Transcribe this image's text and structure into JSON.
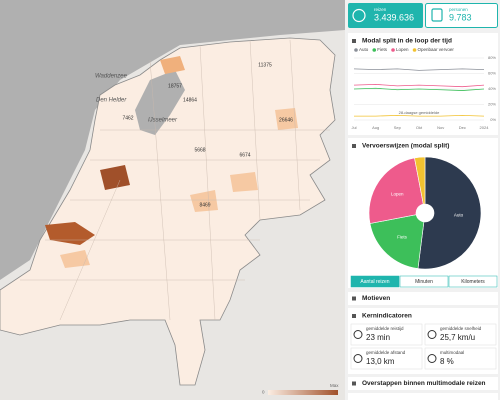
{
  "cards": [
    {
      "label": "reizen",
      "value": "3.439.636"
    },
    {
      "label": "personen",
      "value": "9.783"
    }
  ],
  "map": {
    "places": [
      "Waddenzee",
      "Den Helder",
      "IJsselmeer"
    ],
    "region_values": [
      "18757",
      "11375",
      "7462",
      "5668",
      "6674",
      "26646",
      "14864",
      "8469"
    ],
    "legend": {
      "min": "0",
      "max": "Max"
    }
  },
  "modal_time": {
    "type": "line",
    "title": "Modal split in de loop der tijd",
    "x": [
      "Jul",
      "Aug",
      "Sep",
      "Okt",
      "Nov",
      "Dec",
      "2024"
    ],
    "series": [
      {
        "name": "Auto",
        "color": "#8a8f98",
        "values": [
          66,
          65,
          66,
          64,
          65,
          66,
          65
        ]
      },
      {
        "name": "Fiets",
        "color": "#3dbf5a",
        "values": [
          40,
          41,
          39,
          40,
          39,
          38,
          40
        ]
      },
      {
        "name": "Lopen",
        "color": "#ee5b8c",
        "values": [
          45,
          46,
          44,
          45,
          44,
          43,
          45
        ]
      },
      {
        "name": "Openbaar vervoer",
        "color": "#f2c230",
        "values": [
          5,
          5,
          6,
          5,
          5,
          6,
          5
        ]
      }
    ],
    "ylim": [
      0,
      80
    ],
    "yticks": [
      {
        "value": 0,
        "label": "0%"
      },
      {
        "value": 20,
        "label": "20%"
      },
      {
        "value": 40,
        "label": "40%"
      },
      {
        "value": 60,
        "label": "60%"
      },
      {
        "value": 80,
        "label": "80%"
      }
    ],
    "annotation": "28-daagse gemiddelde"
  },
  "modal_split": {
    "type": "pie",
    "title": "Vervoerswijzen (modal split)",
    "categories": [
      "Auto",
      "Fiets",
      "Lopen",
      null
    ],
    "values": [
      52,
      20,
      25,
      3
    ],
    "colors": [
      "#2d3a4f",
      "#3dbf5a",
      "#ee5b8c",
      "#f2c230"
    ],
    "tabs": [
      "Aantal reizen",
      "Minuten",
      "Kilometers"
    ]
  },
  "motieven": {
    "title": "Motieven"
  },
  "kernindicatoren": {
    "title": "Kernindicatoren",
    "items": [
      {
        "label": "gemiddelde reistijd",
        "value": "23 min"
      },
      {
        "label": "gemiddelde snelheid",
        "value": "25,7 km/u"
      },
      {
        "label": "gemiddelde afstand",
        "value": "13,0 km"
      },
      {
        "label": "multimodaal",
        "value": "8 %"
      }
    ]
  },
  "overstappen": {
    "title": "Overstappen binnen multimodale reizen"
  }
}
